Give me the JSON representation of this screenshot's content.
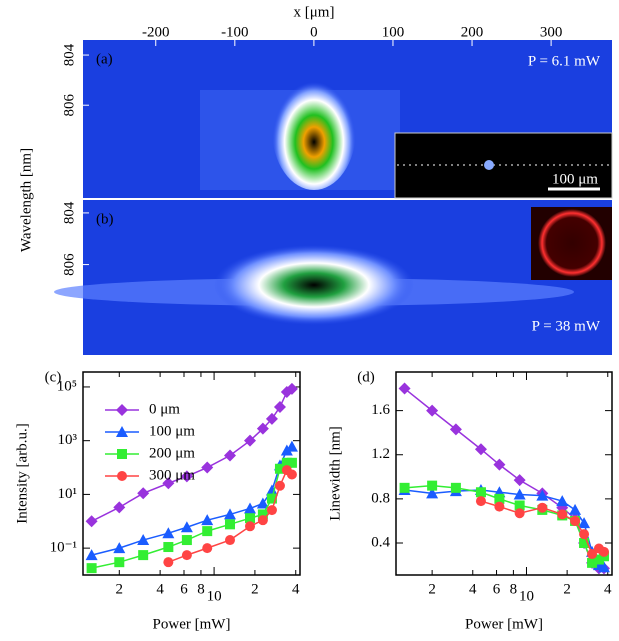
{
  "chart_data": [
    {
      "type": "image",
      "xlabel": "x [μm]",
      "xlim": [
        -292,
        377
      ],
      "xticks": [
        -200,
        -100,
        0,
        100,
        200,
        300
      ],
      "ylabel": "Wavelength [nm]",
      "panels": [
        {
          "label": "(a)",
          "annotation": "P = 6.1 mW",
          "ylim": [
            803.4,
            809.7
          ],
          "yticks": [
            804,
            806
          ],
          "inset_scale": "100 μm"
        },
        {
          "label": "(b)",
          "annotation": "P = 38 mW",
          "ylim": [
            803.5,
            809.5
          ],
          "yticks": [
            804,
            806
          ]
        }
      ]
    },
    {
      "type": "line",
      "label": "(c)",
      "xlabel": "Power [mW]",
      "ylabel": "Intensity [arb.u.]",
      "xlog": true,
      "ylog": true,
      "xlim": [
        1.08,
        43
      ],
      "ylim": [
        0.01,
        360000
      ],
      "xticks": [
        2,
        4,
        6,
        8,
        10,
        {
          "value": 20,
          "label": "2"
        },
        {
          "value": 40,
          "label": "4"
        }
      ],
      "yticks": [
        {
          "value": 0.1,
          "label": "10⁻¹"
        },
        {
          "value": 10,
          "label": "10¹"
        },
        {
          "value": 1000,
          "label": "10³"
        },
        {
          "value": 100000,
          "label": "10⁵"
        }
      ],
      "legend": "upper left",
      "series": [
        {
          "name": "0 μm",
          "color": "#9933dd",
          "marker": "diamond",
          "x": [
            1.25,
            2,
            3,
            4.6,
            6.3,
            8.9,
            13.1,
            18.4,
            22.9,
            26.7,
            30.6,
            34.4,
            37.5
          ],
          "values": [
            1,
            3.3,
            11,
            26,
            47,
            100,
            280,
            1000,
            2800,
            6500,
            18000,
            65000,
            85000
          ]
        },
        {
          "name": "100 μm",
          "color": "#1a5cff",
          "marker": "triangle",
          "x": [
            1.25,
            2,
            3,
            4.6,
            6.3,
            8.9,
            13.1,
            18.4,
            22.9,
            26.7,
            30.6,
            34.4,
            37.5
          ],
          "values": [
            0.055,
            0.1,
            0.2,
            0.36,
            0.6,
            1.1,
            1.8,
            3,
            4.6,
            14,
            120,
            430,
            600
          ]
        },
        {
          "name": "200 μm",
          "color": "#33ee33",
          "marker": "square",
          "x": [
            1.25,
            2,
            3,
            4.6,
            6.3,
            8.9,
            13.1,
            18.4,
            22.9,
            26.7,
            30.6,
            34.4,
            37.5
          ],
          "values": [
            0.018,
            0.03,
            0.055,
            0.11,
            0.2,
            0.43,
            0.77,
            1.3,
            1.8,
            7,
            90,
            150,
            150
          ]
        },
        {
          "name": "300 μm",
          "color": "#ff4444",
          "marker": "circle",
          "x": [
            4.6,
            6.3,
            8.9,
            13.1,
            18.4,
            22.9,
            26.7,
            30.6,
            34.4,
            37.5
          ],
          "values": [
            0.03,
            0.055,
            0.1,
            0.2,
            0.65,
            1.1,
            2.6,
            21,
            80,
            55
          ]
        }
      ]
    },
    {
      "type": "line",
      "label": "(d)",
      "xlabel": "Power [mW]",
      "ylabel": "Linewidth [nm]",
      "xlog": true,
      "ylog": false,
      "xlim": [
        1.08,
        43
      ],
      "ylim": [
        0.11,
        1.95
      ],
      "xticks": [
        2,
        4,
        6,
        8,
        10,
        {
          "value": 20,
          "label": "2"
        },
        {
          "value": 40,
          "label": "4"
        }
      ],
      "yticks": [
        0.4,
        0.8,
        1.2,
        1.6
      ],
      "series": [
        {
          "color": "#9933dd",
          "marker": "diamond",
          "x": [
            1.25,
            2,
            3,
            4.6,
            6.3,
            8.9,
            13.1,
            18.4,
            22.9,
            26.7,
            30.6,
            34.4,
            37.5
          ],
          "values": [
            1.8,
            1.6,
            1.43,
            1.25,
            1.11,
            0.97,
            0.85,
            0.72,
            0.62,
            0.4,
            0.22,
            0.17,
            0.17
          ]
        },
        {
          "color": "#1a5cff",
          "marker": "triangle",
          "x": [
            1.25,
            2,
            3,
            4.6,
            6.3,
            8.9,
            13.1,
            18.4,
            22.9,
            26.7,
            30.6,
            34.4,
            37.5
          ],
          "values": [
            0.88,
            0.85,
            0.87,
            0.88,
            0.86,
            0.84,
            0.83,
            0.78,
            0.7,
            0.58,
            0.32,
            0.2,
            0.18
          ]
        },
        {
          "color": "#33ee33",
          "marker": "square",
          "x": [
            1.25,
            2,
            3,
            4.6,
            6.3,
            8.9,
            13.1,
            18.4,
            22.9,
            26.7,
            30.6,
            34.4,
            37.5
          ],
          "values": [
            0.9,
            0.92,
            0.9,
            0.86,
            0.8,
            0.74,
            0.7,
            0.65,
            0.6,
            0.4,
            0.22,
            0.25,
            0.28
          ]
        },
        {
          "color": "#ff4444",
          "marker": "circle",
          "x": [
            4.6,
            6.3,
            8.9,
            13.1,
            18.4,
            22.9,
            26.7,
            30.6,
            34.4,
            37.5
          ],
          "values": [
            0.78,
            0.73,
            0.67,
            0.72,
            0.66,
            0.6,
            0.48,
            0.3,
            0.35,
            0.32
          ]
        }
      ]
    }
  ]
}
